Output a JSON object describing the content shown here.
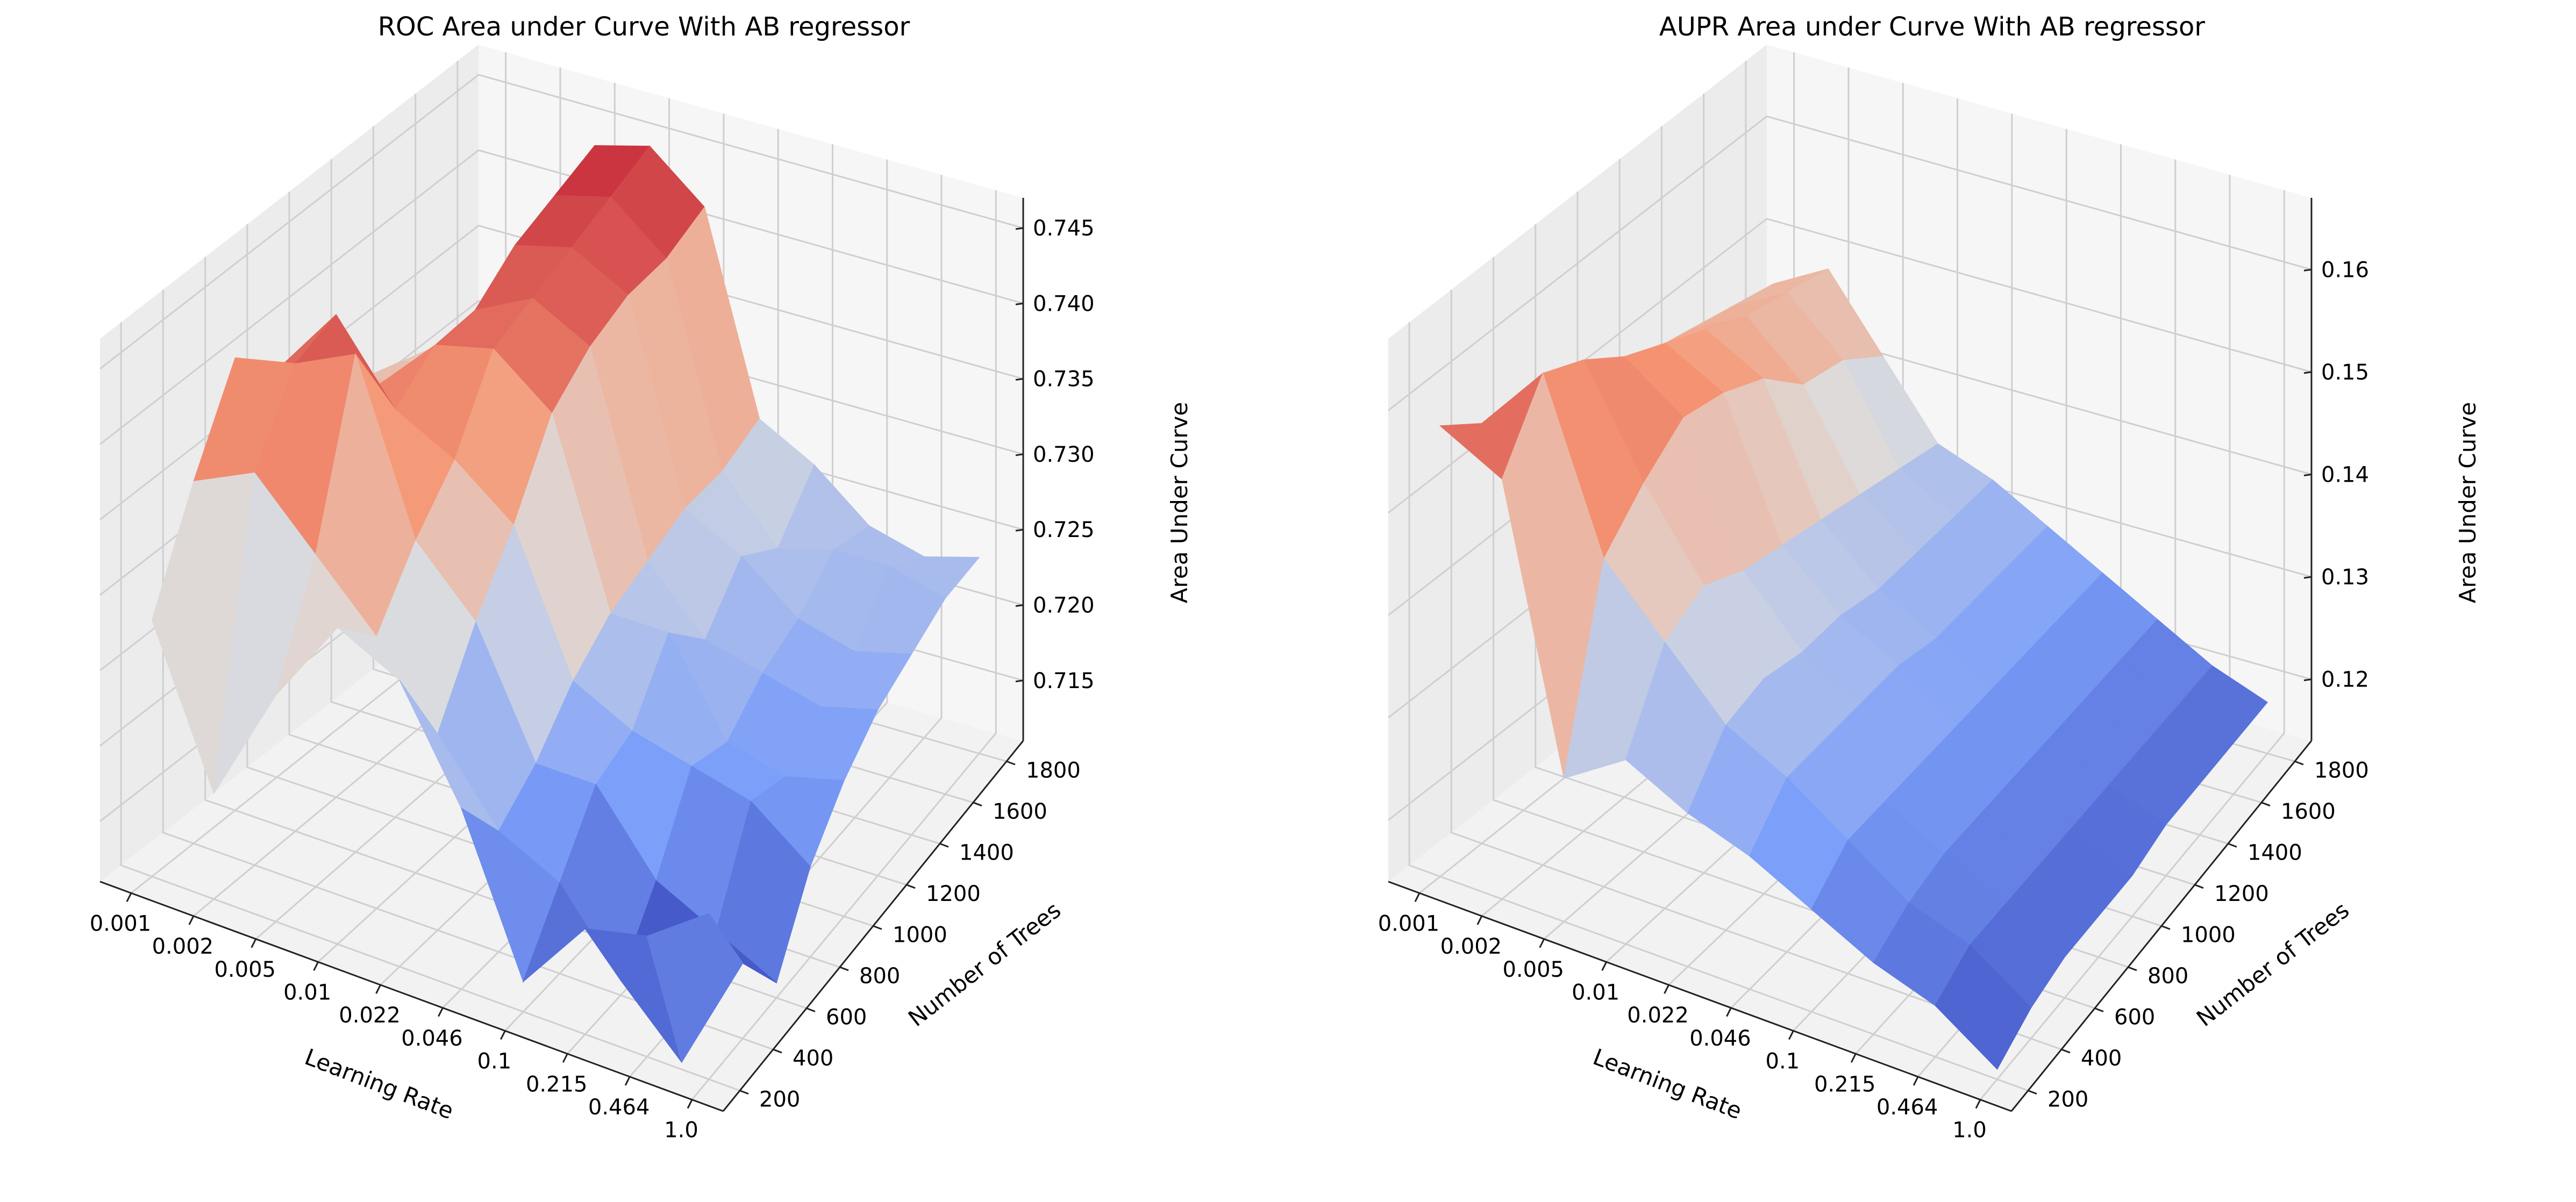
{
  "colors": {
    "pane_floor": "#f2f2f2",
    "pane_back": "#f6f6f6",
    "pane_side": "#ececec",
    "grid": "#cfcfcf",
    "colormap": "coolwarm"
  },
  "chart_data": [
    {
      "type": "surface3d",
      "title": "ROC Area under Curve With AB regressor",
      "xlabel": "Learning Rate",
      "ylabel": "Number of Trees",
      "zlabel": "Area Under Curve",
      "x_ticks": [
        "0.001",
        "0.002",
        "0.005",
        "0.01",
        "0.022",
        "0.046",
        "0.1",
        "0.215",
        "0.464",
        "1.0"
      ],
      "y_ticks": [
        "200",
        "400",
        "600",
        "800",
        "1000",
        "1200",
        "1400",
        "1600",
        "1800"
      ],
      "z_ticks": [
        "0.715",
        "0.720",
        "0.725",
        "0.730",
        "0.735",
        "0.740",
        "0.745"
      ],
      "zlim": [
        0.711,
        0.747
      ],
      "grid": true,
      "z": [
        [
          0.728,
          0.735,
          0.741,
          0.738,
          0.735,
          0.733,
          0.732,
          0.731,
          0.73
        ],
        [
          0.718,
          0.737,
          0.742,
          0.743,
          0.736,
          0.734,
          0.733,
          0.732,
          0.731
        ],
        [
          0.726,
          0.733,
          0.744,
          0.738,
          0.74,
          0.74,
          0.742,
          0.743,
          0.744
        ],
        [
          0.732,
          0.729,
          0.733,
          0.736,
          0.741,
          0.742,
          0.743,
          0.744,
          0.745
        ],
        [
          0.73,
          0.724,
          0.729,
          0.733,
          0.738,
          0.74,
          0.741,
          0.741,
          0.742
        ],
        [
          0.723,
          0.719,
          0.721,
          0.724,
          0.726,
          0.727,
          0.728,
          0.728,
          0.729
        ],
        [
          0.713,
          0.717,
          0.721,
          0.722,
          0.726,
          0.723,
          0.726,
          0.724,
          0.727
        ],
        [
          0.718,
          0.712,
          0.716,
          0.721,
          0.72,
          0.722,
          0.723,
          0.725,
          0.724
        ],
        [
          0.719,
          0.708,
          0.714,
          0.72,
          0.719,
          0.721,
          0.722,
          0.725,
          0.723
        ],
        [
          0.722,
          0.716,
          0.712,
          0.717,
          0.72,
          0.722,
          0.723,
          0.724,
          0.724
        ]
      ]
    },
    {
      "type": "surface3d",
      "title": "AUPR Area under Curve With AB regressor",
      "xlabel": "Learning Rate",
      "ylabel": "Number of Trees",
      "zlabel": "Area Under Curve",
      "x_ticks": [
        "0.001",
        "0.002",
        "0.005",
        "0.01",
        "0.022",
        "0.046",
        "0.1",
        "0.215",
        "0.464",
        "1.0"
      ],
      "y_ticks": [
        "200",
        "400",
        "600",
        "800",
        "1000",
        "1200",
        "1400",
        "1600",
        "1800"
      ],
      "z_ticks": [
        "0.12",
        "0.13",
        "0.14",
        "0.15",
        "0.16"
      ],
      "zlim": [
        0.114,
        0.167
      ],
      "grid": true,
      "z": [
        [
          0.158,
          0.155,
          0.153,
          0.151,
          0.15,
          0.149,
          0.148,
          0.147,
          0.146
        ],
        [
          0.155,
          0.162,
          0.16,
          0.157,
          0.155,
          0.153,
          0.151,
          0.15,
          0.149
        ],
        [
          0.128,
          0.146,
          0.15,
          0.153,
          0.152,
          0.15,
          0.146,
          0.145,
          0.142
        ],
        [
          0.132,
          0.14,
          0.142,
          0.14,
          0.139,
          0.138,
          0.137,
          0.136,
          0.135
        ],
        [
          0.129,
          0.134,
          0.135,
          0.134,
          0.134,
          0.133,
          0.133,
          0.133,
          0.133
        ],
        [
          0.127,
          0.131,
          0.131,
          0.131,
          0.131,
          0.13,
          0.13,
          0.13,
          0.13
        ],
        [
          0.124,
          0.127,
          0.127,
          0.127,
          0.127,
          0.127,
          0.127,
          0.127,
          0.127
        ],
        [
          0.121,
          0.123,
          0.124,
          0.124,
          0.124,
          0.124,
          0.124,
          0.124,
          0.124
        ],
        [
          0.119,
          0.121,
          0.121,
          0.121,
          0.121,
          0.121,
          0.121,
          0.121,
          0.121
        ],
        [
          0.115,
          0.117,
          0.118,
          0.118,
          0.118,
          0.119,
          0.119,
          0.119,
          0.119
        ]
      ]
    }
  ]
}
